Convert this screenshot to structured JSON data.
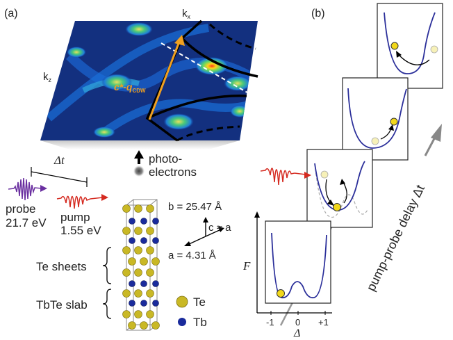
{
  "panel_labels": {
    "a": "(a)",
    "b": "(b)"
  },
  "axes": {
    "kx": "k",
    "kx_sub": "x",
    "kz": "k",
    "kz_sub": "z"
  },
  "vector_label": {
    "main": "c*-q",
    "sub": "CDW"
  },
  "photoelectrons": {
    "line1": "photo-",
    "line2": "electrons"
  },
  "delay": {
    "symbol": "Δt"
  },
  "probe": {
    "label": "probe",
    "energy": "21.7 eV"
  },
  "pump": {
    "label": "pump",
    "energy": "1.55 eV"
  },
  "lattice": {
    "b": "b = 25.47 Å",
    "a": "a = 4.31 Å",
    "c": "c ≈ a",
    "te_sheets": "Te sheets",
    "tbte_slab": "TbTe slab",
    "legend": [
      {
        "name": "Te",
        "color": "#c9b825"
      },
      {
        "name": "Tb",
        "color": "#1a2b9c"
      }
    ]
  },
  "energy_plot": {
    "ylabel": "F",
    "xlabel": "Δ",
    "ticks": [
      "-1",
      "0",
      "+1"
    ]
  },
  "delay_axis_label": "pump-probe delay Δt",
  "colors": {
    "probe": "#6a2fa0",
    "pump": "#d52a20",
    "vector": "#f0a020",
    "curve": "#2b2f9a",
    "ball": "#f2d81a"
  }
}
